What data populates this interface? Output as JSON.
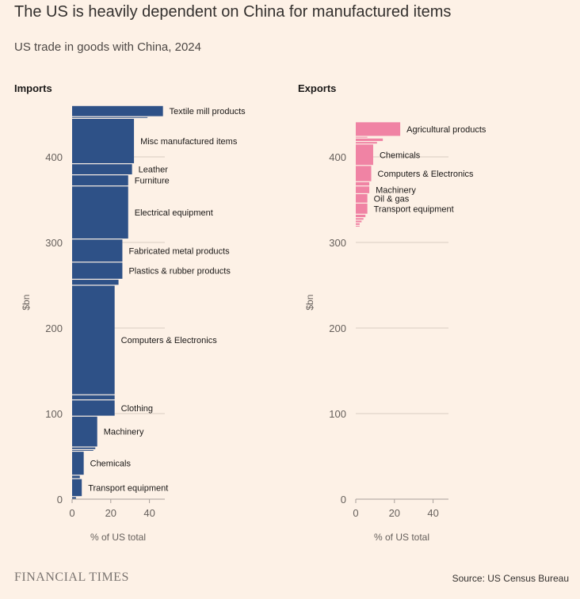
{
  "title": "The US is heavily dependent on China for manufactured items",
  "subtitle": "US trade in goods with China, 2024",
  "source": "Source: US Census Bureau",
  "logo": "FINANCIAL TIMES",
  "colors": {
    "imports": "#2e5187",
    "exports": "#f083a4",
    "background": "#fdf1e6",
    "grid": "#d9cdc2"
  },
  "chart_data": [
    {
      "type": "bar",
      "title": "Imports",
      "xlabel": "% of US total",
      "ylabel": "$bn",
      "xlim": [
        0,
        48
      ],
      "xticks": [
        0,
        20,
        40
      ],
      "ylim": [
        0,
        460
      ],
      "yticks": [
        0,
        100,
        200,
        300,
        400
      ],
      "grid": true,
      "segments": [
        {
          "label": "",
          "start": 0,
          "end": 3,
          "pct": 2
        },
        {
          "label": "Transport equipment",
          "start": 3,
          "end": 24,
          "pct": 5
        },
        {
          "label": "",
          "start": 24,
          "end": 28,
          "pct": 4
        },
        {
          "label": "Chemicals",
          "start": 28,
          "end": 56,
          "pct": 6
        },
        {
          "label": "",
          "start": 56,
          "end": 58,
          "pct": 11
        },
        {
          "label": "",
          "start": 58,
          "end": 61,
          "pct": 12
        },
        {
          "label": "Machinery",
          "start": 61,
          "end": 97,
          "pct": 13
        },
        {
          "label": "Clothing",
          "start": 97,
          "end": 116,
          "pct": 22
        },
        {
          "label": "",
          "start": 116,
          "end": 122,
          "pct": 22
        },
        {
          "label": "Computers & Electronics",
          "start": 122,
          "end": 250,
          "pct": 22
        },
        {
          "label": "",
          "start": 250,
          "end": 257,
          "pct": 24
        },
        {
          "label": "Plastics & rubber products",
          "start": 257,
          "end": 277,
          "pct": 26
        },
        {
          "label": "Fabricated metal products",
          "start": 277,
          "end": 304,
          "pct": 26
        },
        {
          "label": "Electrical equipment",
          "start": 304,
          "end": 366,
          "pct": 29
        },
        {
          "label": "Furniture",
          "start": 366,
          "end": 379,
          "pct": 29
        },
        {
          "label": "Leather",
          "start": 379,
          "end": 392,
          "pct": 31
        },
        {
          "label": "Misc manufactured items",
          "start": 392,
          "end": 445,
          "pct": 32
        },
        {
          "label": "",
          "start": 445,
          "end": 447,
          "pct": 39
        },
        {
          "label": "Textile mill products",
          "start": 447,
          "end": 460,
          "pct": 47
        }
      ]
    },
    {
      "type": "bar",
      "title": "Exports",
      "xlabel": "% of US total",
      "ylabel": "$bn",
      "xlim": [
        0,
        48
      ],
      "xticks": [
        0,
        20,
        40
      ],
      "ylim": [
        0,
        460
      ],
      "yticks": [
        0,
        100,
        200,
        300,
        400
      ],
      "grid": true,
      "segments": [
        {
          "label": "",
          "start": 318,
          "end": 320,
          "pct": 2
        },
        {
          "label": "",
          "start": 320,
          "end": 323,
          "pct": 2
        },
        {
          "label": "",
          "start": 323,
          "end": 326,
          "pct": 3
        },
        {
          "label": "",
          "start": 326,
          "end": 329,
          "pct": 4
        },
        {
          "label": "",
          "start": 329,
          "end": 333,
          "pct": 5
        },
        {
          "label": "Transport equipment",
          "start": 333,
          "end": 346,
          "pct": 6
        },
        {
          "label": "Oil & gas",
          "start": 346,
          "end": 357,
          "pct": 6
        },
        {
          "label": "Machinery",
          "start": 357,
          "end": 366,
          "pct": 7
        },
        {
          "label": "",
          "start": 366,
          "end": 371,
          "pct": 7
        },
        {
          "label": "Computers & Electronics",
          "start": 371,
          "end": 390,
          "pct": 8
        },
        {
          "label": "Chemicals",
          "start": 390,
          "end": 415,
          "pct": 9
        },
        {
          "label": "",
          "start": 415,
          "end": 418,
          "pct": 11
        },
        {
          "label": "",
          "start": 418,
          "end": 422,
          "pct": 14
        },
        {
          "label": "",
          "start": 422,
          "end": 424,
          "pct": 6
        },
        {
          "label": "Agricultural products",
          "start": 424,
          "end": 441,
          "pct": 23
        }
      ]
    }
  ]
}
